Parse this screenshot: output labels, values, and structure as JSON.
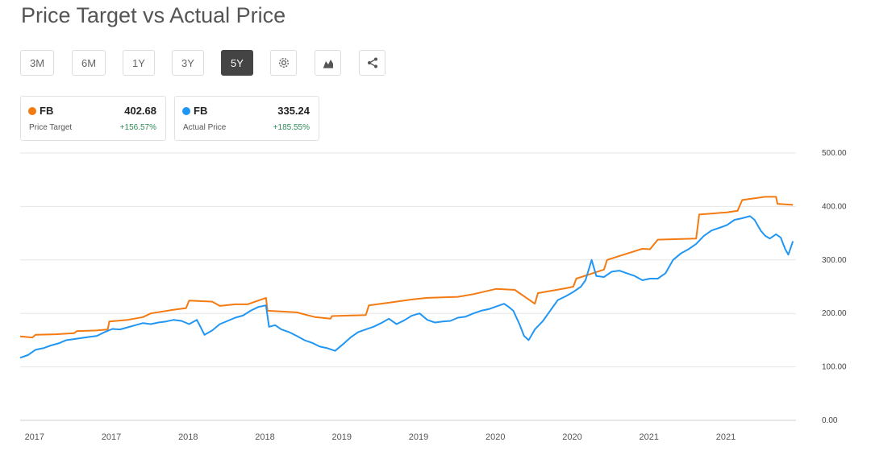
{
  "title": "Price Target vs Actual Price",
  "toolbar": {
    "ranges": [
      "3M",
      "6M",
      "1Y",
      "3Y",
      "5Y"
    ],
    "active": "5Y",
    "icons": [
      "gear-icon",
      "chart-type-icon",
      "share-icon"
    ]
  },
  "legend_cards": [
    {
      "ticker": "FB",
      "value": "402.68",
      "label": "Price Target",
      "change": "+156.57%",
      "color": "#f47a12"
    },
    {
      "ticker": "FB",
      "value": "335.24",
      "label": "Actual Price",
      "change": "+185.55%",
      "color": "#2196f3"
    }
  ],
  "chart_data": {
    "type": "line",
    "title": "Price Target vs Actual Price",
    "xlabel": "",
    "ylabel": "",
    "ylim": [
      0,
      500
    ],
    "yticks": [
      "0.00",
      "100.00",
      "200.00",
      "300.00",
      "400.00",
      "500.00"
    ],
    "xlim": [
      2016.9,
      2021.95
    ],
    "xticks": [
      {
        "x": 2016.92,
        "label": "2017"
      },
      {
        "x": 2017.42,
        "label": "2017"
      },
      {
        "x": 2017.92,
        "label": "2018"
      },
      {
        "x": 2018.42,
        "label": "2018"
      },
      {
        "x": 2018.92,
        "label": "2019"
      },
      {
        "x": 2019.42,
        "label": "2019"
      },
      {
        "x": 2019.92,
        "label": "2020"
      },
      {
        "x": 2020.42,
        "label": "2020"
      },
      {
        "x": 2020.92,
        "label": "2021"
      },
      {
        "x": 2021.42,
        "label": "2021"
      }
    ],
    "grid": true,
    "series": [
      {
        "name": "Price Target",
        "color": "#f47a12",
        "points": [
          [
            2016.9,
            157
          ],
          [
            2016.98,
            155
          ],
          [
            2017.0,
            160
          ],
          [
            2017.13,
            161
          ],
          [
            2017.25,
            163
          ],
          [
            2017.27,
            167
          ],
          [
            2017.4,
            168
          ],
          [
            2017.47,
            170
          ],
          [
            2017.48,
            185
          ],
          [
            2017.6,
            188
          ],
          [
            2017.7,
            193
          ],
          [
            2017.75,
            200
          ],
          [
            2017.9,
            207
          ],
          [
            2017.98,
            210
          ],
          [
            2018.0,
            224
          ],
          [
            2018.15,
            222
          ],
          [
            2018.2,
            214
          ],
          [
            2018.3,
            217
          ],
          [
            2018.38,
            217
          ],
          [
            2018.5,
            229
          ],
          [
            2018.51,
            205
          ],
          [
            2018.7,
            202
          ],
          [
            2018.82,
            193
          ],
          [
            2018.92,
            190
          ],
          [
            2018.93,
            195
          ],
          [
            2019.15,
            197
          ],
          [
            2019.17,
            215
          ],
          [
            2019.3,
            220
          ],
          [
            2019.45,
            226
          ],
          [
            2019.55,
            229
          ],
          [
            2019.75,
            231
          ],
          [
            2019.85,
            236
          ],
          [
            2020.0,
            246
          ],
          [
            2020.12,
            244
          ],
          [
            2020.2,
            228
          ],
          [
            2020.25,
            218
          ],
          [
            2020.27,
            238
          ],
          [
            2020.45,
            247
          ],
          [
            2020.5,
            250
          ],
          [
            2020.52,
            265
          ],
          [
            2020.7,
            282
          ],
          [
            2020.72,
            300
          ],
          [
            2020.95,
            321
          ],
          [
            2021.0,
            320
          ],
          [
            2021.05,
            338
          ],
          [
            2021.3,
            340
          ],
          [
            2021.32,
            385
          ],
          [
            2021.5,
            389
          ],
          [
            2021.57,
            392
          ],
          [
            2021.6,
            412
          ],
          [
            2021.75,
            418
          ],
          [
            2021.82,
            418
          ],
          [
            2021.83,
            405
          ],
          [
            2021.93,
            403
          ]
        ]
      },
      {
        "name": "Actual Price",
        "color": "#2196f3",
        "points": [
          [
            2016.9,
            117
          ],
          [
            2016.95,
            122
          ],
          [
            2017.0,
            132
          ],
          [
            2017.05,
            135
          ],
          [
            2017.1,
            140
          ],
          [
            2017.15,
            144
          ],
          [
            2017.2,
            150
          ],
          [
            2017.25,
            152
          ],
          [
            2017.3,
            154
          ],
          [
            2017.35,
            156
          ],
          [
            2017.4,
            158
          ],
          [
            2017.45,
            165
          ],
          [
            2017.5,
            171
          ],
          [
            2017.55,
            170
          ],
          [
            2017.6,
            174
          ],
          [
            2017.65,
            178
          ],
          [
            2017.7,
            182
          ],
          [
            2017.75,
            180
          ],
          [
            2017.8,
            183
          ],
          [
            2017.85,
            185
          ],
          [
            2017.9,
            188
          ],
          [
            2017.95,
            186
          ],
          [
            2018.0,
            180
          ],
          [
            2018.05,
            188
          ],
          [
            2018.1,
            160
          ],
          [
            2018.15,
            168
          ],
          [
            2018.2,
            180
          ],
          [
            2018.25,
            186
          ],
          [
            2018.3,
            192
          ],
          [
            2018.35,
            196
          ],
          [
            2018.4,
            205
          ],
          [
            2018.45,
            212
          ],
          [
            2018.5,
            215
          ],
          [
            2018.52,
            175
          ],
          [
            2018.56,
            178
          ],
          [
            2018.6,
            170
          ],
          [
            2018.65,
            165
          ],
          [
            2018.7,
            158
          ],
          [
            2018.75,
            150
          ],
          [
            2018.8,
            145
          ],
          [
            2018.85,
            138
          ],
          [
            2018.9,
            135
          ],
          [
            2018.95,
            130
          ],
          [
            2019.0,
            142
          ],
          [
            2019.05,
            155
          ],
          [
            2019.1,
            165
          ],
          [
            2019.15,
            170
          ],
          [
            2019.2,
            175
          ],
          [
            2019.25,
            182
          ],
          [
            2019.3,
            190
          ],
          [
            2019.35,
            180
          ],
          [
            2019.4,
            187
          ],
          [
            2019.45,
            196
          ],
          [
            2019.5,
            200
          ],
          [
            2019.55,
            188
          ],
          [
            2019.6,
            183
          ],
          [
            2019.65,
            185
          ],
          [
            2019.7,
            186
          ],
          [
            2019.75,
            192
          ],
          [
            2019.8,
            194
          ],
          [
            2019.85,
            200
          ],
          [
            2019.9,
            205
          ],
          [
            2019.95,
            208
          ],
          [
            2020.0,
            213
          ],
          [
            2020.05,
            218
          ],
          [
            2020.08,
            212
          ],
          [
            2020.11,
            205
          ],
          [
            2020.15,
            180
          ],
          [
            2020.18,
            158
          ],
          [
            2020.21,
            150
          ],
          [
            2020.25,
            170
          ],
          [
            2020.3,
            185
          ],
          [
            2020.35,
            205
          ],
          [
            2020.4,
            225
          ],
          [
            2020.45,
            232
          ],
          [
            2020.5,
            240
          ],
          [
            2020.55,
            250
          ],
          [
            2020.58,
            262
          ],
          [
            2020.62,
            300
          ],
          [
            2020.65,
            270
          ],
          [
            2020.7,
            268
          ],
          [
            2020.75,
            278
          ],
          [
            2020.8,
            280
          ],
          [
            2020.85,
            275
          ],
          [
            2020.9,
            270
          ],
          [
            2020.95,
            262
          ],
          [
            2021.0,
            265
          ],
          [
            2021.05,
            265
          ],
          [
            2021.1,
            275
          ],
          [
            2021.15,
            300
          ],
          [
            2021.2,
            312
          ],
          [
            2021.25,
            320
          ],
          [
            2021.3,
            330
          ],
          [
            2021.35,
            345
          ],
          [
            2021.4,
            355
          ],
          [
            2021.45,
            360
          ],
          [
            2021.5,
            365
          ],
          [
            2021.55,
            375
          ],
          [
            2021.6,
            378
          ],
          [
            2021.65,
            382
          ],
          [
            2021.68,
            375
          ],
          [
            2021.72,
            355
          ],
          [
            2021.75,
            345
          ],
          [
            2021.78,
            340
          ],
          [
            2021.82,
            348
          ],
          [
            2021.85,
            342
          ],
          [
            2021.88,
            320
          ],
          [
            2021.9,
            310
          ],
          [
            2021.93,
            335
          ]
        ]
      }
    ]
  }
}
